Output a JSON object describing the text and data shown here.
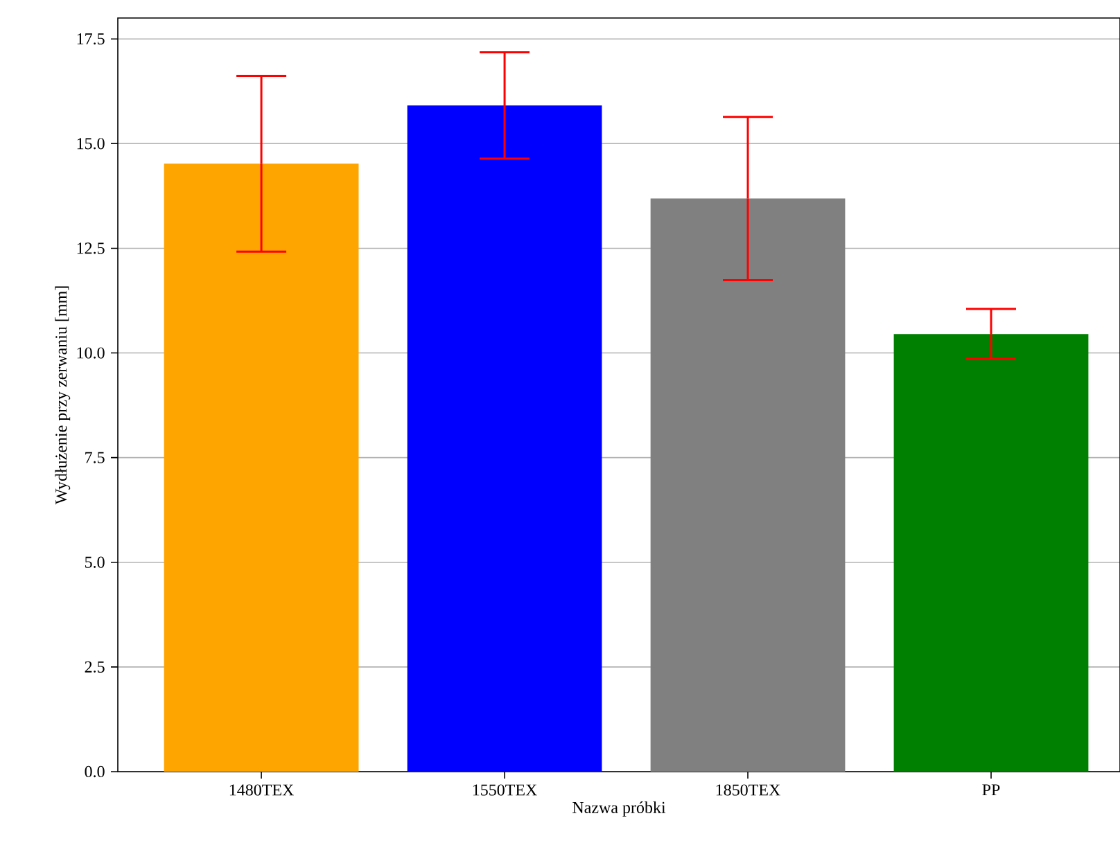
{
  "chart_data": {
    "type": "bar",
    "xlabel": "Nazwa próbki",
    "ylabel": "Wydłużenie przy zerwaniu [mm]",
    "categories": [
      "1480TEX",
      "1550TEX",
      "1850TEX",
      "PP"
    ],
    "values": [
      14.52,
      15.91,
      13.69,
      10.45
    ],
    "colors": [
      "#ffa500",
      "#0000ff",
      "#808080",
      "#008000"
    ],
    "errors": [
      2.1,
      1.27,
      1.95,
      0.6
    ],
    "ylim": [
      0,
      18
    ],
    "yticks": [
      {
        "value": 0,
        "label": "0.0"
      },
      {
        "value": 2.5,
        "label": "2.5"
      },
      {
        "value": 5,
        "label": "5.0"
      },
      {
        "value": 7.5,
        "label": "7.5"
      },
      {
        "value": 10,
        "label": "10.0"
      },
      {
        "value": 12.5,
        "label": "12.5"
      },
      {
        "value": 15,
        "label": "15.0"
      },
      {
        "value": 17.5,
        "label": "17.5"
      }
    ],
    "grid": "y"
  }
}
